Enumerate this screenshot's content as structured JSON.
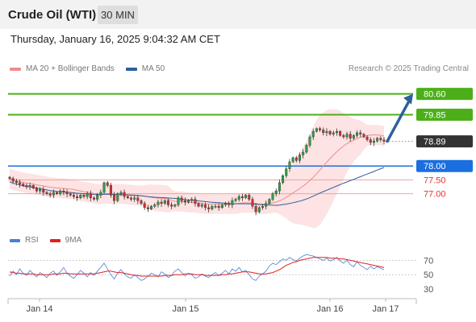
{
  "header": {
    "instrument": "Crude Oil (WTI)",
    "timeframe": "30 MIN",
    "datetime": "Thursday, January 16, 2025 9:04:32 AM CET"
  },
  "legend": {
    "ma20_label": "MA 20 + Bollinger Bands",
    "ma50_label": "MA 50",
    "credit": "Research © 2025 Trading Central"
  },
  "rsi_legend": {
    "rsi_label": "RSI",
    "ma9_label": "9MA"
  },
  "colors": {
    "target": "#4caf1a",
    "pivot": "#1a6fe0",
    "support": "#e8312f",
    "ma20": "#f08c8c",
    "ma50": "#2f5f9e",
    "bollinger_fill": "#fde3e3",
    "bull": "#2ea043",
    "bear": "#d32f2f",
    "arrow": "#2f5f9e",
    "rsi": "#4a7fd4",
    "ma9": "#e02020"
  },
  "chart_data": [
    {
      "type": "candlestick",
      "title": "Crude Oil (WTI)",
      "interval": "30 MIN",
      "x_ticks": [
        "Jan 14",
        "Jan 15",
        "Jan 16",
        "Jan 17"
      ],
      "ylim": [
        75.8,
        81.2
      ],
      "current_price": 78.89,
      "levels": [
        {
          "value": 80.6,
          "label": "80.60",
          "role": "target"
        },
        {
          "value": 79.85,
          "label": "79.85",
          "role": "target"
        },
        {
          "value": 78.89,
          "label": "78.89",
          "role": "current"
        },
        {
          "value": 78.0,
          "label": "78.00",
          "role": "pivot"
        },
        {
          "value": 77.5,
          "label": "77.50",
          "role": "support"
        },
        {
          "value": 77.0,
          "label": "77.00",
          "role": "support"
        }
      ],
      "projection": {
        "from": 78.89,
        "to": 80.6,
        "direction": "up"
      },
      "series": [
        {
          "name": "MA 20 + Bollinger Bands",
          "kind": "line+band"
        },
        {
          "name": "MA 50",
          "kind": "line"
        }
      ],
      "close": [
        77.55,
        77.45,
        77.4,
        77.35,
        77.3,
        77.25,
        77.3,
        77.2,
        77.1,
        77.15,
        77.05,
        77.0,
        76.95,
        77.05,
        77.0,
        77.1,
        77.05,
        77.0,
        76.95,
        76.9,
        76.85,
        76.95,
        76.9,
        77.0,
        76.85,
        76.8,
        76.95,
        77.05,
        77.4,
        77.3,
        76.95,
        76.75,
        77.0,
        77.05,
        76.9,
        76.85,
        76.8,
        76.85,
        76.75,
        76.65,
        76.5,
        76.45,
        76.55,
        76.6,
        76.7,
        76.65,
        76.75,
        76.6,
        76.55,
        76.6,
        76.85,
        76.75,
        76.7,
        76.75,
        76.8,
        76.65,
        76.55,
        76.6,
        76.5,
        76.45,
        76.55,
        76.55,
        76.5,
        76.6,
        76.65,
        76.6,
        76.75,
        76.8,
        76.9,
        76.85,
        76.95,
        76.8,
        76.55,
        76.35,
        76.5,
        76.55,
        76.65,
        76.8,
        77.0,
        77.1,
        77.4,
        77.65,
        77.9,
        78.15,
        78.3,
        78.2,
        78.4,
        78.5,
        78.75,
        79.05,
        79.25,
        79.35,
        79.3,
        79.2,
        79.25,
        79.15,
        79.2,
        79.25,
        79.1,
        79.05,
        79.15,
        79.0,
        79.1,
        79.2,
        79.15,
        79.05,
        78.95,
        78.85,
        78.9,
        79.0,
        78.95,
        78.89
      ]
    },
    {
      "type": "line",
      "title": "RSI",
      "x_ticks": [
        "Jan 14",
        "Jan 15",
        "Jan 16",
        "Jan 17"
      ],
      "yticks": [
        30,
        50,
        70
      ],
      "ylim": [
        20,
        85
      ],
      "series": [
        {
          "name": "RSI",
          "values": [
            48,
            55,
            50,
            58,
            52,
            49,
            56,
            51,
            47,
            53,
            50,
            46,
            52,
            55,
            49,
            54,
            60,
            52,
            48,
            45,
            50,
            56,
            52,
            47,
            53,
            49,
            55,
            60,
            66,
            58,
            50,
            44,
            52,
            57,
            51,
            47,
            45,
            50,
            46,
            42,
            44,
            48,
            52,
            50,
            47,
            54,
            51,
            46,
            49,
            55,
            58,
            53,
            48,
            52,
            50,
            45,
            47,
            51,
            48,
            46,
            50,
            53,
            49,
            52,
            56,
            51,
            58,
            55,
            60,
            54,
            56,
            50,
            44,
            42,
            48,
            51,
            55,
            62,
            66,
            64,
            68,
            72,
            70,
            74,
            71,
            69,
            73,
            76,
            78,
            77,
            76,
            74,
            72,
            70,
            73,
            69,
            71,
            74,
            69,
            66,
            70,
            64,
            61,
            68,
            63,
            60,
            57,
            62,
            58,
            61,
            59,
            57
          ]
        },
        {
          "name": "9MA",
          "values": [
            54,
            53,
            52,
            52,
            51,
            51,
            51,
            51,
            50,
            50,
            50,
            50,
            50,
            51,
            51,
            51,
            52,
            52,
            51,
            51,
            51,
            51,
            51,
            51,
            51,
            51,
            52,
            53,
            54,
            55,
            55,
            54,
            53,
            53,
            52,
            51,
            50,
            49,
            49,
            48,
            48,
            48,
            48,
            48,
            48,
            48,
            49,
            49,
            49,
            50,
            50,
            50,
            51,
            51,
            51,
            50,
            50,
            50,
            49,
            49,
            49,
            49,
            49,
            50,
            50,
            51,
            51,
            52,
            53,
            54,
            54,
            54,
            53,
            52,
            51,
            51,
            51,
            52,
            53,
            55,
            57,
            60,
            63,
            65,
            67,
            68,
            70,
            71,
            72,
            73,
            74,
            74,
            74,
            74,
            74,
            73,
            73,
            73,
            72,
            72,
            71,
            70,
            69,
            68,
            67,
            66,
            65,
            64,
            63,
            62,
            61,
            60
          ]
        }
      ]
    }
  ]
}
